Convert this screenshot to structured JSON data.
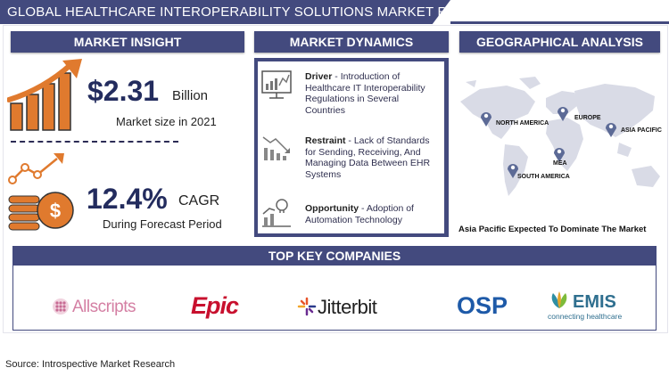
{
  "title": "GLOBAL HEALTHCARE INTEROPERABILITY SOLUTIONS MARKET REPORT",
  "sections": {
    "insight": "MARKET INSIGHT",
    "dynamics": "MARKET DYNAMICS",
    "geo": "GEOGRAPHICAL ANALYSIS",
    "companies": "TOP KEY COMPANIES"
  },
  "insight": {
    "market_value": "$2.31",
    "market_unit": "Billion",
    "market_caption": "Market size in 2021",
    "cagr_value": "12.4%",
    "cagr_unit": "CAGR",
    "cagr_caption": "During Forecast Period"
  },
  "dynamics": [
    {
      "label": "Driver",
      "text": " - Introduction of Healthcare IT Interoperability Regulations in Several Countries",
      "icon": "chart-board-icon"
    },
    {
      "label": "Restraint",
      "text": " - Lack of Standards for Sending, Receiving, And Managing Data Between EHR Systems",
      "icon": "declining-bars-icon"
    },
    {
      "label": "Opportunity",
      "text": " - Adoption of Automation Technology",
      "icon": "growth-lightbulb-icon"
    }
  ],
  "geo": {
    "regions": [
      "NORTH AMERICA",
      "EUROPE",
      "ASIA PACIFIC",
      "MEA",
      "SOUTH AMERICA"
    ],
    "caption": "Asia Pacific Expected To Dominate The Market"
  },
  "companies": [
    "Allscripts",
    "Epic",
    "Jitterbit",
    "OSP",
    "EMIS",
    "connecting healthcare"
  ],
  "source": "Source: Introspective Market Research",
  "colors": {
    "navy": "#434a7e",
    "orange": "#e07a2e",
    "epic_red": "#c8102e",
    "osp_blue": "#1e5aa8",
    "emis_teal": "#2f8fa3"
  }
}
